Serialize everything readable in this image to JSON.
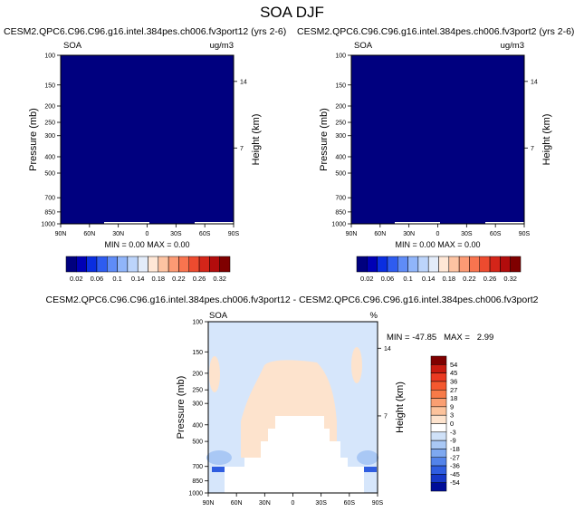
{
  "title": "SOA DJF",
  "chart_data": [
    {
      "type": "heatmap",
      "title": "CESM2.QPC6.C96.C96.g16.intel.384pes.ch006.fv3port12 (yrs 2-6)",
      "left_label": "SOA",
      "unit": "ug/m3",
      "ylabel": "Pressure (mb)",
      "ylabel_right": "Height (km)",
      "x_ticks": [
        "90N",
        "60N",
        "30N",
        "0",
        "30S",
        "60S",
        "90S"
      ],
      "y_ticks": [
        100,
        150,
        200,
        250,
        300,
        400,
        500,
        700,
        850,
        1000
      ],
      "y_scale": "log",
      "height_ticks": [
        14,
        7
      ],
      "stats": "MIN =   0.00   MAX =   0.00",
      "min": 0.0,
      "max": 0.0,
      "fill": "#00007f"
    },
    {
      "type": "heatmap",
      "title": "CESM2.QPC6.C96.C96.g16.intel.384pes.ch006.fv3port2 (yrs 2-6)",
      "left_label": "SOA",
      "unit": "ug/m3",
      "ylabel": "Pressure (mb)",
      "ylabel_right": "Height (km)",
      "x_ticks": [
        "90N",
        "60N",
        "30N",
        "0",
        "30S",
        "60S",
        "90S"
      ],
      "y_ticks": [
        100,
        150,
        200,
        250,
        300,
        400,
        500,
        700,
        850,
        1000
      ],
      "y_scale": "log",
      "height_ticks": [
        14,
        7
      ],
      "stats": "MIN =   0.00   MAX =   0.00",
      "min": 0.0,
      "max": 0.0,
      "fill": "#00007f"
    },
    {
      "type": "heatmap",
      "title": "CESM2.QPC6.C96.C96.g16.intel.384pes.ch006.fv3port12 - CESM2.QPC6.C96.C96.g16.intel.384pes.ch006.fv3port2",
      "left_label": "SOA",
      "unit": "%",
      "ylabel": "Pressure (mb)",
      "ylabel_right": "Height (km)",
      "x_ticks": [
        "90N",
        "60N",
        "30N",
        "0",
        "30S",
        "60S",
        "90S"
      ],
      "y_ticks": [
        100,
        150,
        200,
        250,
        300,
        400,
        500,
        700,
        850,
        1000
      ],
      "y_scale": "log",
      "height_ticks": [
        14,
        7
      ],
      "stats": "MIN = -47.85   MAX =   2.99",
      "min": -47.85,
      "max": 2.99
    }
  ],
  "colorbar_top": {
    "labels": [
      "0.02",
      "0.06",
      "0.1",
      "0.14",
      "0.18",
      "0.22",
      "0.26",
      "0.32"
    ],
    "colors": [
      "#00007f",
      "#0000b5",
      "#0a2ee0",
      "#2e5cf0",
      "#5f8cf7",
      "#90b5fa",
      "#bcd4fb",
      "#e3ecfa",
      "#ffe7d6",
      "#fdc3a2",
      "#fc9a74",
      "#f8744f",
      "#ed4b2f",
      "#d42519",
      "#b20c0c",
      "#7f0000"
    ]
  },
  "colorbar_diff": {
    "labels": [
      "54",
      "45",
      "36",
      "27",
      "18",
      "9",
      "3",
      "0",
      "-3",
      "-9",
      "-18",
      "-27",
      "-36",
      "-45",
      "-54"
    ],
    "colors": [
      "#7f0000",
      "#c81b10",
      "#ea3a22",
      "#f4582f",
      "#f77a48",
      "#fa9f72",
      "#fcc39c",
      "#fde3cd",
      "#ffffff",
      "#cfe1f8",
      "#a9c8f5",
      "#7ea8f0",
      "#5383ea",
      "#2f5de0",
      "#1638c8",
      "#000d98"
    ]
  },
  "colors": {
    "plot_fill": "#00007f",
    "diff_background": "#d6e6fb",
    "diff_positive": "#fde3cd",
    "diff_negative_mid": "#a9c8f5",
    "diff_negative_strong": "#2f5de0"
  }
}
